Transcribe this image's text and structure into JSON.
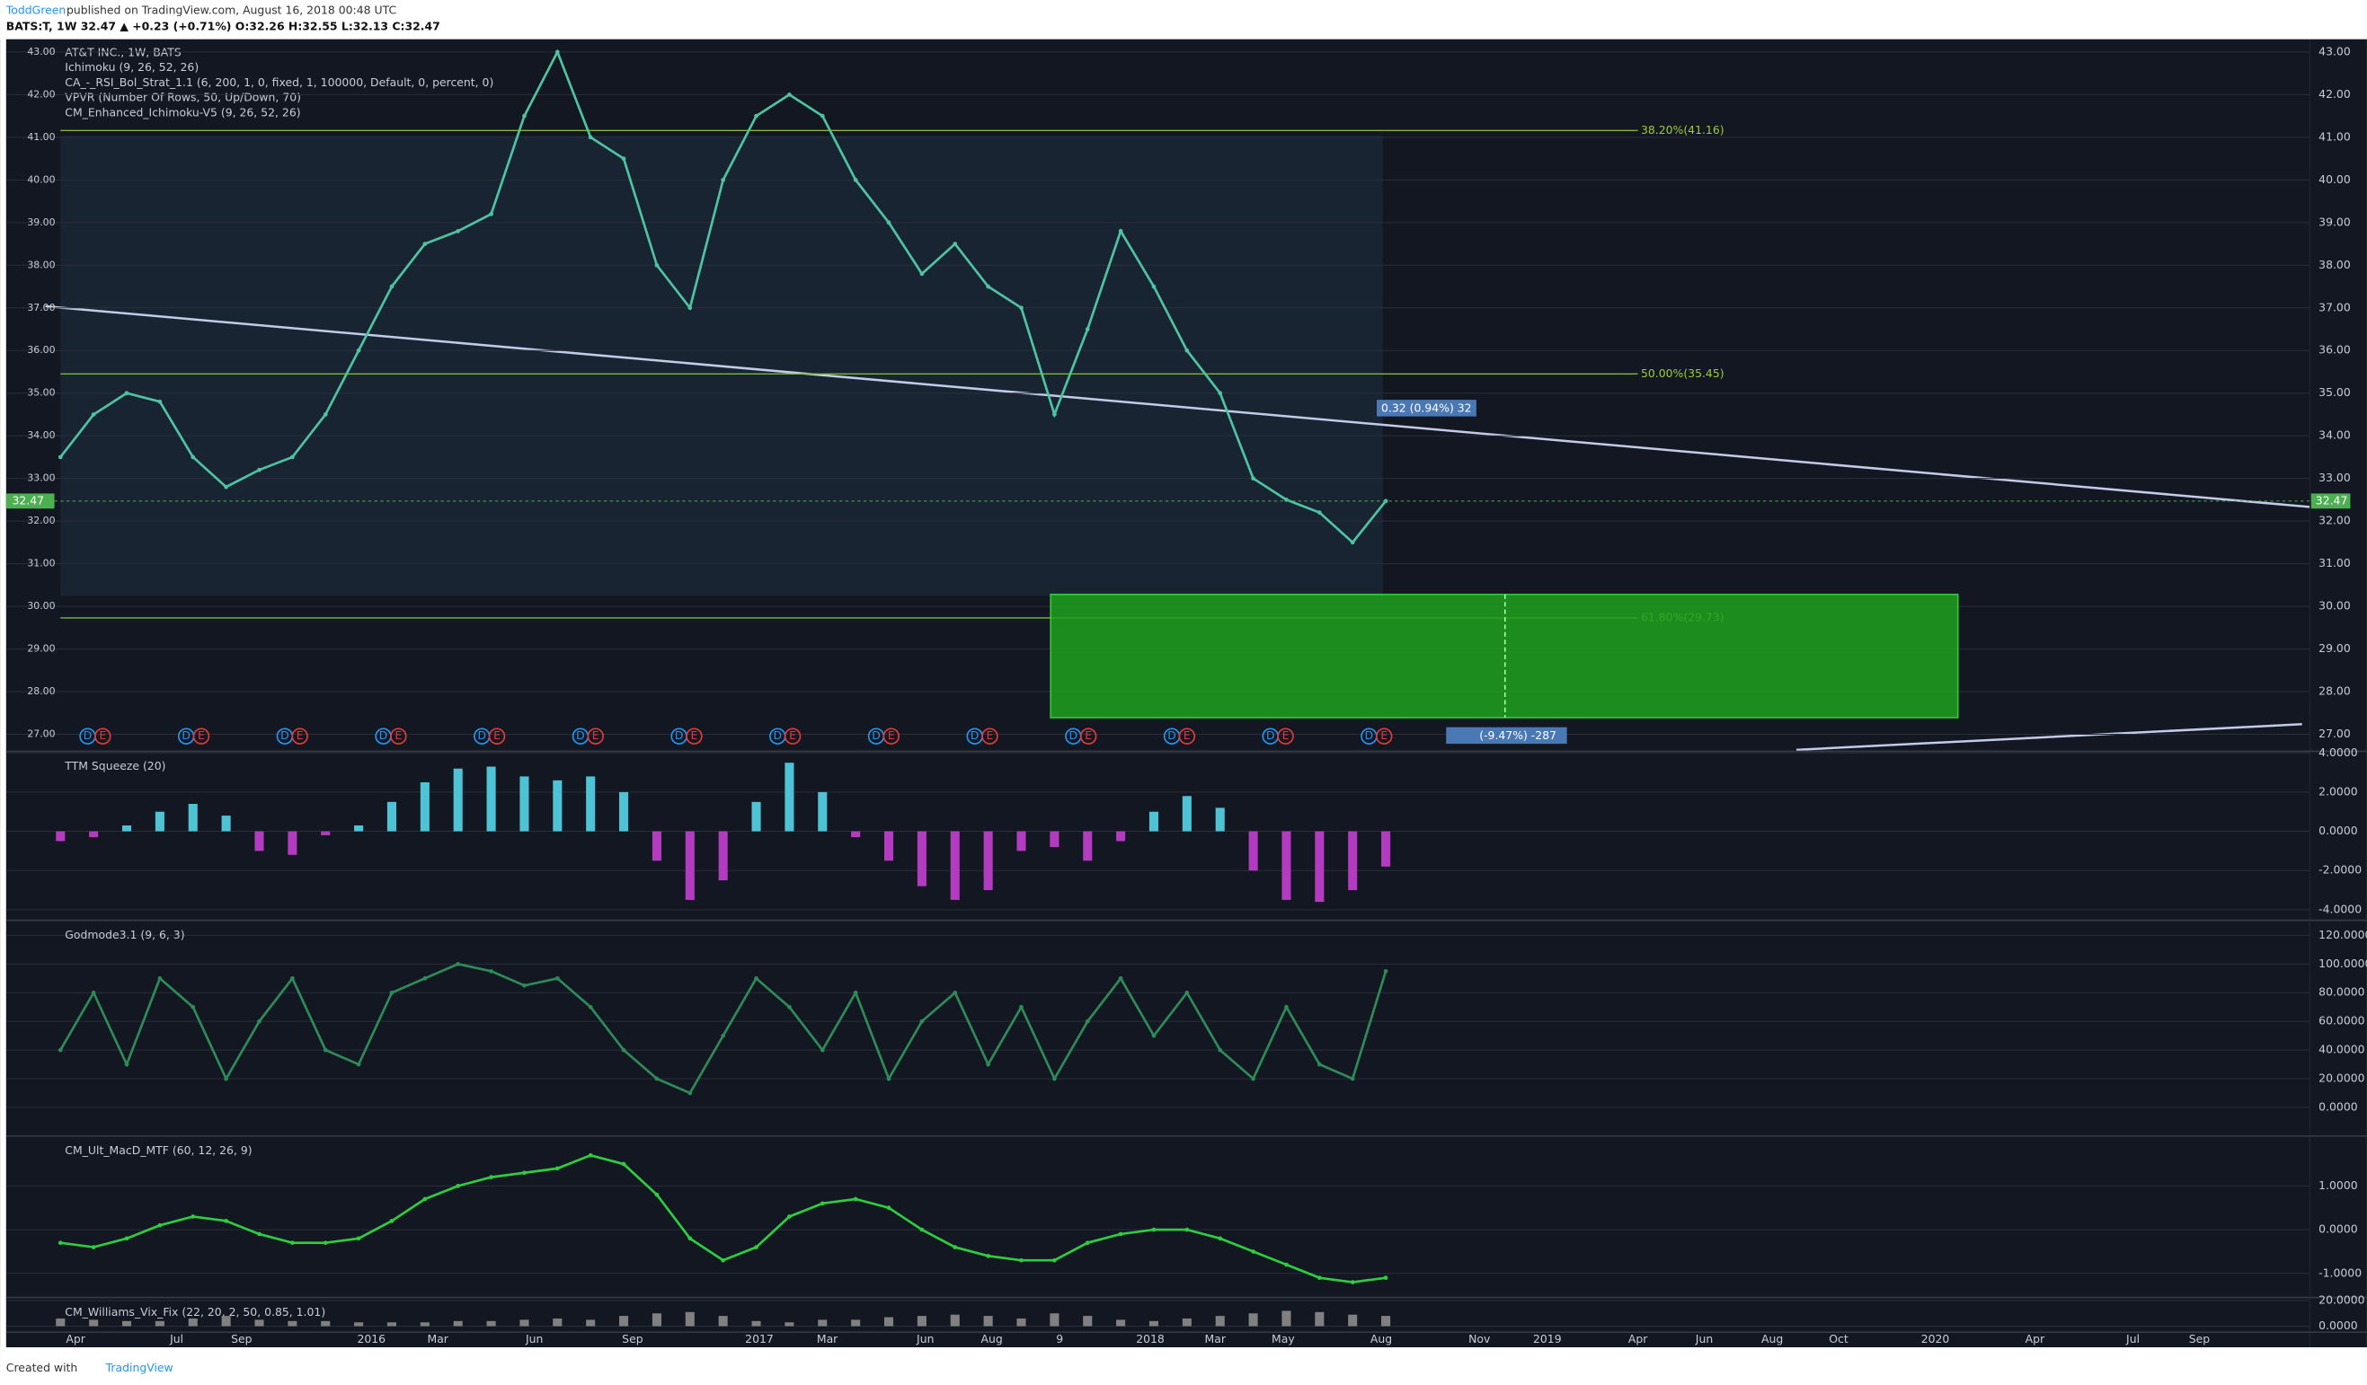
{
  "header": {
    "author": "ToddGreen",
    "published": "published on TradingView.com, August 16, 2018 00:48 UTC",
    "symbol_line": "BATS:T, 1W  32.47 ▲ +0.23 (+0.71%) O:32.26 H:32.55 L:32.13 C:32.47",
    "legend": [
      "AT&T INC., 1W, BATS",
      "Ichimoku (9, 26, 52, 26)",
      "CA_-_RSI_Bol_Strat_1.1 (6, 200, 1, 0, fixed, 1, 100000, Default, 0, percent, 0)",
      "VPVR (Number Of Rows, 50, Up/Down, 70)",
      "CM_Enhanced_Ichimoku-V5 (9, 26, 52, 26)"
    ]
  },
  "x_axis_labels": [
    "Apr",
    "Jul",
    "Sep",
    "2016",
    "Mar",
    "Jun",
    "Sep",
    "2017",
    "Mar",
    "Jun",
    "Aug",
    "9",
    "2018",
    "Mar",
    "May",
    "Aug",
    "Nov",
    "2019",
    "Apr",
    "Jun",
    "Aug",
    "Oct",
    "2020",
    "Apr",
    "Jul",
    "Sep"
  ],
  "markers": {
    "dividend": "D",
    "earnings": "E"
  },
  "footer": {
    "created": "Created with",
    "brand": "TradingView"
  },
  "chart_data": [
    {
      "type": "line",
      "title": "AT&T INC., 1W, BATS",
      "color": "#4fc3a1",
      "ylim": [
        26.6,
        43.3
      ],
      "yticks": [
        {
          "value": 43,
          "label": "43.00"
        },
        {
          "value": 42,
          "label": "42.00"
        },
        {
          "value": 41,
          "label": "41.00"
        },
        {
          "value": 40,
          "label": "40.00"
        },
        {
          "value": 39,
          "label": "39.00"
        },
        {
          "value": 38,
          "label": "38.00"
        },
        {
          "value": 37,
          "label": "37.00"
        },
        {
          "value": 36,
          "label": "36.00"
        },
        {
          "value": 35,
          "label": "35.00"
        },
        {
          "value": 34,
          "label": "34.00"
        },
        {
          "value": 33,
          "label": "33.00"
        },
        {
          "value": 32,
          "label": "32.00"
        },
        {
          "value": 31,
          "label": "31.00"
        },
        {
          "value": 30,
          "label": "30.00"
        },
        {
          "value": 29,
          "label": "29.00"
        },
        {
          "value": 28,
          "label": "28.00"
        },
        {
          "value": 27,
          "label": "27.00"
        }
      ],
      "values": [
        33.5,
        34.5,
        35,
        34.8,
        33.5,
        32.8,
        33.2,
        33.5,
        34.5,
        36,
        37.5,
        38.5,
        38.8,
        39.2,
        41.5,
        43,
        41,
        40.5,
        38,
        37,
        40,
        41.5,
        42,
        41.5,
        40,
        39,
        37.8,
        38.5,
        37.5,
        37,
        34.5,
        36.5,
        38.8,
        37.5,
        36,
        35,
        33,
        32.5,
        32.2,
        31.5,
        32.47
      ],
      "last_price": 32.47,
      "fib_levels": [
        {
          "value": 41.16,
          "label": "38.20%(41.16)"
        },
        {
          "value": 35.45,
          "label": "50.00%(35.45)"
        },
        {
          "value": 29.73,
          "label": "61.80%(29.73)"
        }
      ],
      "target_zone": {
        "top": 30.28,
        "bottom": 27.39,
        "color": "#1fa11f"
      },
      "notes": [
        "0.32 (0.94%) 32",
        "(-9.47%) -287"
      ]
    },
    {
      "type": "bar",
      "title": "TTM Squeeze (20)",
      "ylim": [
        -4.54,
        4.08
      ],
      "pos_color": "#4fc3d6",
      "neg_color": "#b23bc0",
      "yticks": [
        {
          "value": 4,
          "label": "4.0000"
        },
        {
          "value": 2,
          "label": "2.0000"
        },
        {
          "value": 0,
          "label": "0.0000"
        },
        {
          "value": -2,
          "label": "-2.0000"
        },
        {
          "value": -4,
          "label": "-4.0000"
        }
      ],
      "values": [
        -0.5,
        -0.3,
        0.3,
        1.0,
        1.4,
        0.8,
        -1.0,
        -1.2,
        -0.2,
        0.3,
        1.5,
        2.5,
        3.2,
        3.3,
        2.8,
        2.6,
        2.8,
        2.0,
        -1.5,
        -3.5,
        -2.5,
        1.5,
        3.5,
        2.0,
        -0.3,
        -1.5,
        -2.8,
        -3.5,
        -3.0,
        -1.0,
        -0.8,
        -1.5,
        -0.5,
        1.0,
        1.8,
        1.2,
        -2.0,
        -3.5,
        -3.6,
        -3.0,
        -1.8
      ]
    },
    {
      "type": "line",
      "title": "Godmode3.1 (9, 6, 3)",
      "color": "#2e8b57",
      "ylim": [
        -20,
        130.5
      ],
      "yticks": [
        {
          "value": 120,
          "label": "120.0000"
        },
        {
          "value": 100,
          "label": "100.0000"
        },
        {
          "value": 80,
          "label": "80.0000"
        },
        {
          "value": 60,
          "label": "60.0000"
        },
        {
          "value": 40,
          "label": "40.0000"
        },
        {
          "value": 20,
          "label": "20.0000"
        },
        {
          "value": 0,
          "label": "0.0000"
        }
      ],
      "values": [
        40,
        80,
        30,
        90,
        70,
        20,
        60,
        90,
        40,
        30,
        80,
        90,
        100,
        95,
        85,
        90,
        70,
        40,
        20,
        10,
        50,
        90,
        70,
        40,
        80,
        20,
        60,
        80,
        30,
        70,
        20,
        60,
        90,
        50,
        80,
        40,
        20,
        70,
        30,
        20,
        95
      ]
    },
    {
      "type": "line",
      "title": "CM_Ult_MacD_MTF (60, 12, 26, 9)",
      "color": "#2ecc40",
      "ylim": [
        -1.55,
        2.14
      ],
      "yticks": [
        {
          "value": 1,
          "label": "1.0000"
        },
        {
          "value": 0,
          "label": "0.0000"
        },
        {
          "value": -1,
          "label": "-1.0000"
        }
      ],
      "values": [
        -0.3,
        -0.4,
        -0.2,
        0.1,
        0.3,
        0.2,
        -0.1,
        -0.3,
        -0.3,
        -0.2,
        0.2,
        0.7,
        1.0,
        1.2,
        1.3,
        1.4,
        1.7,
        1.5,
        0.8,
        -0.2,
        -0.7,
        -0.4,
        0.3,
        0.6,
        0.7,
        0.5,
        0.0,
        -0.4,
        -0.6,
        -0.7,
        -0.7,
        -0.3,
        -0.1,
        0.0,
        0.0,
        -0.2,
        -0.5,
        -0.8,
        -1.1,
        -1.2,
        -1.1
      ]
    },
    {
      "type": "bar",
      "title": "CM_Williams_Vix_Fix (22, 20, 2, 50, 0.85, 1.01)",
      "ylim": [
        -4.7,
        22.4
      ],
      "pos_color": "#808080",
      "neg_color": "#808080",
      "yticks": [
        {
          "value": 20,
          "label": "20.0000"
        },
        {
          "value": 0,
          "label": "0.0000"
        }
      ],
      "values": [
        6,
        5,
        4,
        4,
        6,
        8,
        5,
        4,
        4,
        3,
        3,
        3,
        4,
        4,
        5,
        6,
        5,
        8,
        10,
        11,
        8,
        4,
        3,
        5,
        5,
        7,
        8,
        9,
        8,
        6,
        10,
        8,
        5,
        4,
        6,
        8,
        10,
        12,
        11,
        9,
        8
      ]
    }
  ]
}
